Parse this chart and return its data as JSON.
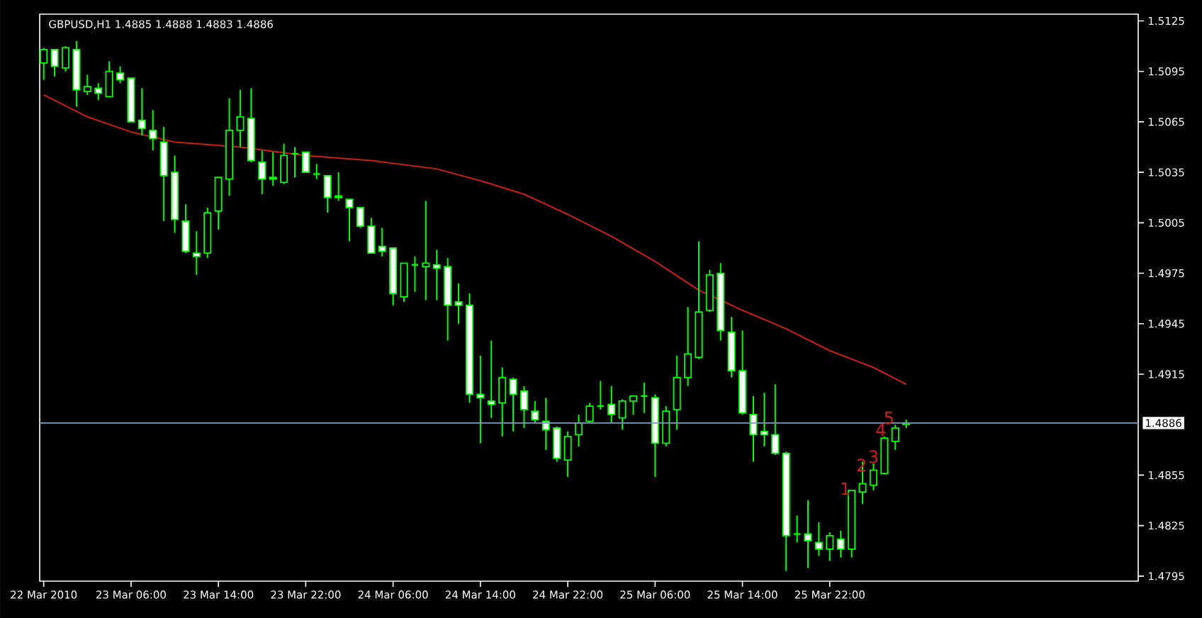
{
  "chart_data": {
    "type": "candlestick",
    "title": "GBPUSD,H1  1.4885 1.4888 1.4883 1.4886",
    "color": "#00ff00",
    "x": [
      "2010-03-22T22:00",
      "2010-03-22T23:00",
      "2010-03-23T00:00",
      "2010-03-23T01:00",
      "2010-03-23T02:00",
      "2010-03-23T03:00",
      "2010-03-23T04:00",
      "2010-03-23T05:00",
      "2010-03-23T06:00",
      "2010-03-23T07:00",
      "2010-03-23T08:00",
      "2010-03-23T09:00",
      "2010-03-23T10:00",
      "2010-03-23T11:00",
      "2010-03-23T12:00",
      "2010-03-23T13:00",
      "2010-03-23T14:00",
      "2010-03-23T15:00",
      "2010-03-23T16:00",
      "2010-03-23T17:00",
      "2010-03-23T18:00",
      "2010-03-23T19:00",
      "2010-03-23T20:00",
      "2010-03-23T21:00",
      "2010-03-23T22:00",
      "2010-03-23T23:00",
      "2010-03-24T00:00",
      "2010-03-24T01:00",
      "2010-03-24T02:00",
      "2010-03-24T03:00",
      "2010-03-24T04:00",
      "2010-03-24T05:00",
      "2010-03-24T06:00",
      "2010-03-24T07:00",
      "2010-03-24T08:00",
      "2010-03-24T09:00",
      "2010-03-24T10:00",
      "2010-03-24T11:00",
      "2010-03-24T12:00",
      "2010-03-24T13:00",
      "2010-03-24T14:00",
      "2010-03-24T15:00",
      "2010-03-24T16:00",
      "2010-03-24T17:00",
      "2010-03-24T18:00",
      "2010-03-24T19:00",
      "2010-03-24T20:00",
      "2010-03-24T21:00",
      "2010-03-24T22:00",
      "2010-03-24T23:00",
      "2010-03-25T00:00",
      "2010-03-25T01:00",
      "2010-03-25T02:00",
      "2010-03-25T03:00",
      "2010-03-25T04:00",
      "2010-03-25T05:00",
      "2010-03-25T06:00",
      "2010-03-25T07:00",
      "2010-03-25T08:00",
      "2010-03-25T09:00",
      "2010-03-25T10:00",
      "2010-03-25T11:00",
      "2010-03-25T12:00",
      "2010-03-25T13:00",
      "2010-03-25T14:00",
      "2010-03-25T15:00",
      "2010-03-25T16:00",
      "2010-03-25T17:00",
      "2010-03-25T18:00",
      "2010-03-25T19:00",
      "2010-03-25T20:00",
      "2010-03-25T21:00",
      "2010-03-25T22:00",
      "2010-03-25T23:00",
      "2010-03-26T00:00",
      "2010-03-26T01:00",
      "2010-03-26T02:00",
      "2010-03-26T03:00",
      "2010-03-26T04:00",
      "2010-03-26T05:00"
    ],
    "ohlc": [
      [
        1.51,
        1.5109,
        1.509,
        1.5108
      ],
      [
        1.5108,
        1.5108,
        1.5092,
        1.5098
      ],
      [
        1.5097,
        1.511,
        1.5095,
        1.5109
      ],
      [
        1.5108,
        1.5113,
        1.5074,
        1.5084
      ],
      [
        1.5083,
        1.5093,
        1.5081,
        1.5086
      ],
      [
        1.5085,
        1.5088,
        1.5078,
        1.5082
      ],
      [
        1.508,
        1.5101,
        1.508,
        1.5095
      ],
      [
        1.5094,
        1.5098,
        1.5088,
        1.509
      ],
      [
        1.5091,
        1.5091,
        1.5065,
        1.5065
      ],
      [
        1.5066,
        1.5085,
        1.5057,
        1.5061
      ],
      [
        1.506,
        1.5072,
        1.5048,
        1.5055
      ],
      [
        1.5053,
        1.5062,
        1.5006,
        1.5033
      ],
      [
        1.5035,
        1.5045,
        1.4999,
        1.5007
      ],
      [
        1.5006,
        1.5016,
        1.4987,
        1.4988
      ],
      [
        1.4987,
        1.5,
        1.4974,
        1.4985
      ],
      [
        1.4987,
        1.5014,
        1.4984,
        1.5011
      ],
      [
        1.5012,
        1.5032,
        1.5001,
        1.5032
      ],
      [
        1.5031,
        1.5079,
        1.5021,
        1.506
      ],
      [
        1.506,
        1.5084,
        1.505,
        1.5068
      ],
      [
        1.5067,
        1.5085,
        1.5041,
        1.5042
      ],
      [
        1.5041,
        1.5048,
        1.5022,
        1.5031
      ],
      [
        1.5032,
        1.5047,
        1.5027,
        1.5031
      ],
      [
        1.5029,
        1.5052,
        1.5028,
        1.5045
      ],
      [
        1.5046,
        1.505,
        1.5032,
        1.5046
      ],
      [
        1.5047,
        1.5047,
        1.5035,
        1.5035
      ],
      [
        1.5034,
        1.504,
        1.5031,
        1.5034
      ],
      [
        1.5033,
        1.5033,
        1.5011,
        1.502
      ],
      [
        1.5021,
        1.5035,
        1.5018,
        1.502
      ],
      [
        1.5019,
        1.5019,
        1.4994,
        1.5014
      ],
      [
        1.5014,
        1.5014,
        1.5002,
        1.5003
      ],
      [
        1.5003,
        1.5008,
        1.4987,
        1.4987
      ],
      [
        1.4991,
        1.5002,
        1.4985,
        1.4988
      ],
      [
        1.499,
        1.499,
        1.4956,
        1.4963
      ],
      [
        1.4961,
        1.4981,
        1.4958,
        1.4981
      ],
      [
        1.498,
        1.4985,
        1.4964,
        1.498
      ],
      [
        1.4979,
        1.5018,
        1.4959,
        1.4981
      ],
      [
        1.498,
        1.4989,
        1.4959,
        1.4978
      ],
      [
        1.4979,
        1.4984,
        1.4935,
        1.4956
      ],
      [
        1.4958,
        1.4969,
        1.4945,
        1.4956
      ],
      [
        1.4956,
        1.4963,
        1.4898,
        1.4903
      ],
      [
        1.4903,
        1.4926,
        1.4874,
        1.4901
      ],
      [
        1.4899,
        1.4935,
        1.4889,
        1.4897
      ],
      [
        1.4898,
        1.4919,
        1.4878,
        1.4913
      ],
      [
        1.4912,
        1.4913,
        1.4881,
        1.4903
      ],
      [
        1.4905,
        1.4908,
        1.4883,
        1.4894
      ],
      [
        1.4893,
        1.4899,
        1.4886,
        1.4888
      ],
      [
        1.4887,
        1.4901,
        1.487,
        1.4882
      ],
      [
        1.4883,
        1.4884,
        1.4863,
        1.4865
      ],
      [
        1.4864,
        1.4881,
        1.4854,
        1.4878
      ],
      [
        1.4879,
        1.4891,
        1.4872,
        1.4886
      ],
      [
        1.4887,
        1.4898,
        1.4886,
        1.4896
      ],
      [
        1.4896,
        1.4911,
        1.4894,
        1.4896
      ],
      [
        1.4897,
        1.4908,
        1.4886,
        1.4891
      ],
      [
        1.4889,
        1.49,
        1.4882,
        1.4899
      ],
      [
        1.4899,
        1.4902,
        1.4891,
        1.4902
      ],
      [
        1.4902,
        1.491,
        1.4892,
        1.4902
      ],
      [
        1.4901,
        1.4903,
        1.4854,
        1.4874
      ],
      [
        1.4874,
        1.4896,
        1.4872,
        1.4893
      ],
      [
        1.4894,
        1.4926,
        1.4882,
        1.4913
      ],
      [
        1.4913,
        1.4955,
        1.4908,
        1.4927
      ],
      [
        1.4925,
        1.4994,
        1.4924,
        1.4952
      ],
      [
        1.4953,
        1.4977,
        1.4952,
        1.4974
      ],
      [
        1.4975,
        1.4981,
        1.4935,
        1.4941
      ],
      [
        1.494,
        1.4949,
        1.4913,
        1.4917
      ],
      [
        1.4917,
        1.4941,
        1.4891,
        1.4892
      ],
      [
        1.4891,
        1.4902,
        1.4863,
        1.4879
      ],
      [
        1.4881,
        1.4904,
        1.4872,
        1.4879
      ],
      [
        1.4879,
        1.4909,
        1.4867,
        1.4868
      ],
      [
        1.4868,
        1.4869,
        1.4798,
        1.4819
      ],
      [
        1.482,
        1.4831,
        1.4815,
        1.482
      ],
      [
        1.482,
        1.484,
        1.48,
        1.4816
      ],
      [
        1.4815,
        1.4827,
        1.4807,
        1.4811
      ],
      [
        1.4811,
        1.4821,
        1.4804,
        1.4819
      ],
      [
        1.4817,
        1.4822,
        1.4806,
        1.4811
      ],
      [
        1.4811,
        1.4846,
        1.4806,
        1.4846
      ],
      [
        1.4845,
        1.4863,
        1.4838,
        1.485
      ],
      [
        1.4849,
        1.4862,
        1.4846,
        1.4858
      ],
      [
        1.4856,
        1.4878,
        1.4856,
        1.4877
      ],
      [
        1.4875,
        1.4885,
        1.487,
        1.4883
      ],
      [
        1.4885,
        1.4888,
        1.4883,
        1.4886
      ]
    ],
    "series": [
      {
        "type": "line",
        "color": "#c81e1e",
        "x": [
          "2010-03-22T22:00",
          "2010-03-23T02:00",
          "2010-03-23T06:00",
          "2010-03-23T10:00",
          "2010-03-23T16:00",
          "2010-03-23T22:00",
          "2010-03-24T04:00",
          "2010-03-24T10:00",
          "2010-03-24T14:00",
          "2010-03-24T18:00",
          "2010-03-24T22:00",
          "2010-03-25T02:00",
          "2010-03-25T06:00",
          "2010-03-25T10:00",
          "2010-03-25T14:00",
          "2010-03-25T18:00",
          "2010-03-25T22:00",
          "2010-03-26T02:00",
          "2010-03-26T05:00"
        ],
        "values": [
          1.5081,
          1.5068,
          1.5059,
          1.5053,
          1.505,
          1.5045,
          1.5042,
          1.5037,
          1.503,
          1.5022,
          1.501,
          1.4997,
          1.4982,
          1.4965,
          1.4953,
          1.4942,
          1.4929,
          1.4919,
          1.4909
        ]
      }
    ],
    "xlim": [
      "2010-03-22T21:38",
      "2010-03-27T02:15"
    ],
    "xticks": [
      {
        "value": "2010-03-22T22:00",
        "label": "22 Mar 2010"
      },
      {
        "value": "2010-03-23T06:00",
        "label": "23 Mar 06:00"
      },
      {
        "value": "2010-03-23T14:00",
        "label": "23 Mar 14:00"
      },
      {
        "value": "2010-03-23T22:00",
        "label": "23 Mar 22:00"
      },
      {
        "value": "2010-03-24T06:00",
        "label": "24 Mar 06:00"
      },
      {
        "value": "2010-03-24T14:00",
        "label": "24 Mar 14:00"
      },
      {
        "value": "2010-03-24T22:00",
        "label": "24 Mar 22:00"
      },
      {
        "value": "2010-03-25T06:00",
        "label": "25 Mar 06:00"
      },
      {
        "value": "2010-03-25T14:00",
        "label": "25 Mar 14:00"
      },
      {
        "value": "2010-03-25T22:00",
        "label": "25 Mar 22:00"
      }
    ],
    "ylim": [
      1.4792,
      1.5129
    ],
    "yticks": [
      1.4795,
      1.4825,
      1.4855,
      1.4915,
      1.4945,
      1.4975,
      1.5005,
      1.5035,
      1.5065,
      1.5095,
      1.5125
    ],
    "ref_lines": [
      {
        "axis": "y",
        "value": 1.4886,
        "label": "1.4886",
        "color": "#7f9cb8"
      }
    ],
    "annotations": [
      {
        "text": "1",
        "x": "2010-03-25T23:25",
        "y": 1.4847
      },
      {
        "text": "2",
        "x": "2010-03-26T00:55",
        "y": 1.4861
      },
      {
        "text": "3",
        "x": "2010-03-26T02:00",
        "y": 1.4866
      },
      {
        "text": "4",
        "x": "2010-03-26T02:40",
        "y": 1.4882
      },
      {
        "text": "5",
        "x": "2010-03-26T03:25",
        "y": 1.4889
      }
    ]
  }
}
